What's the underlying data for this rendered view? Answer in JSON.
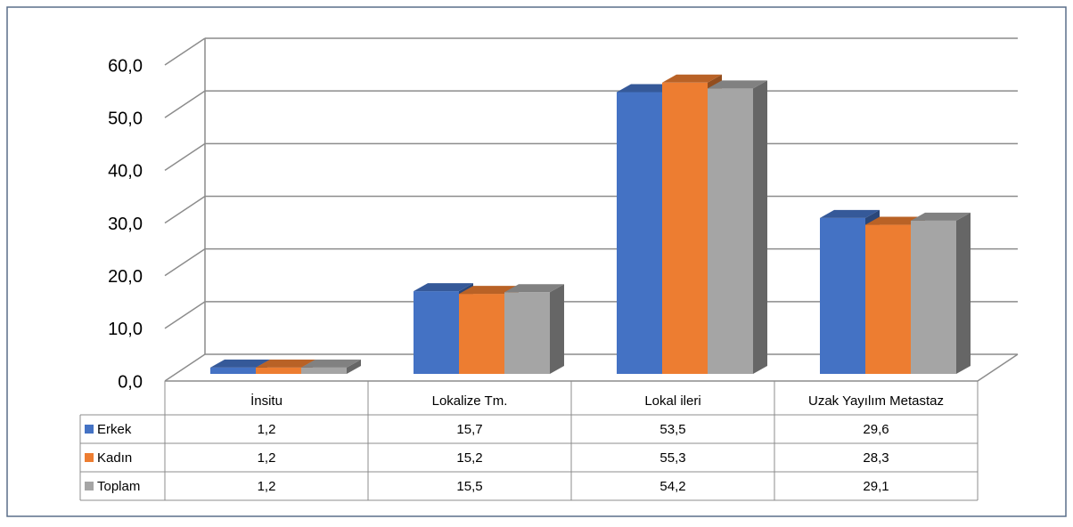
{
  "chart_data": {
    "type": "bar3d",
    "categories": [
      "İnsitu",
      "Lokalize Tm.",
      "Lokal ileri",
      "Uzak Yayılım Metastaz"
    ],
    "series": [
      {
        "name": "Erkek",
        "color": "#4472c4",
        "values": [
          1.2,
          15.7,
          53.5,
          29.6
        ],
        "value_labels": [
          "1,2",
          "15,7",
          "53,5",
          "29,6"
        ]
      },
      {
        "name": "Kadın",
        "color": "#ed7d31",
        "values": [
          1.2,
          15.2,
          55.3,
          28.3
        ],
        "value_labels": [
          "1,2",
          "15,2",
          "55,3",
          "28,3"
        ]
      },
      {
        "name": "Toplam",
        "color": "#a5a5a5",
        "values": [
          1.2,
          15.5,
          54.2,
          29.1
        ],
        "value_labels": [
          "1,2",
          "15,5",
          "54,2",
          "29,1"
        ]
      }
    ],
    "ylim": [
      0,
      60
    ],
    "yticks": [
      {
        "value": 0,
        "label": "0,0"
      },
      {
        "value": 10,
        "label": "10,0"
      },
      {
        "value": 20,
        "label": "20,0"
      },
      {
        "value": 30,
        "label": "30,0"
      },
      {
        "value": 40,
        "label": "40,0"
      },
      {
        "value": 50,
        "label": "50,0"
      },
      {
        "value": 60,
        "label": "60,0"
      }
    ],
    "grid": true,
    "legend": "table"
  }
}
